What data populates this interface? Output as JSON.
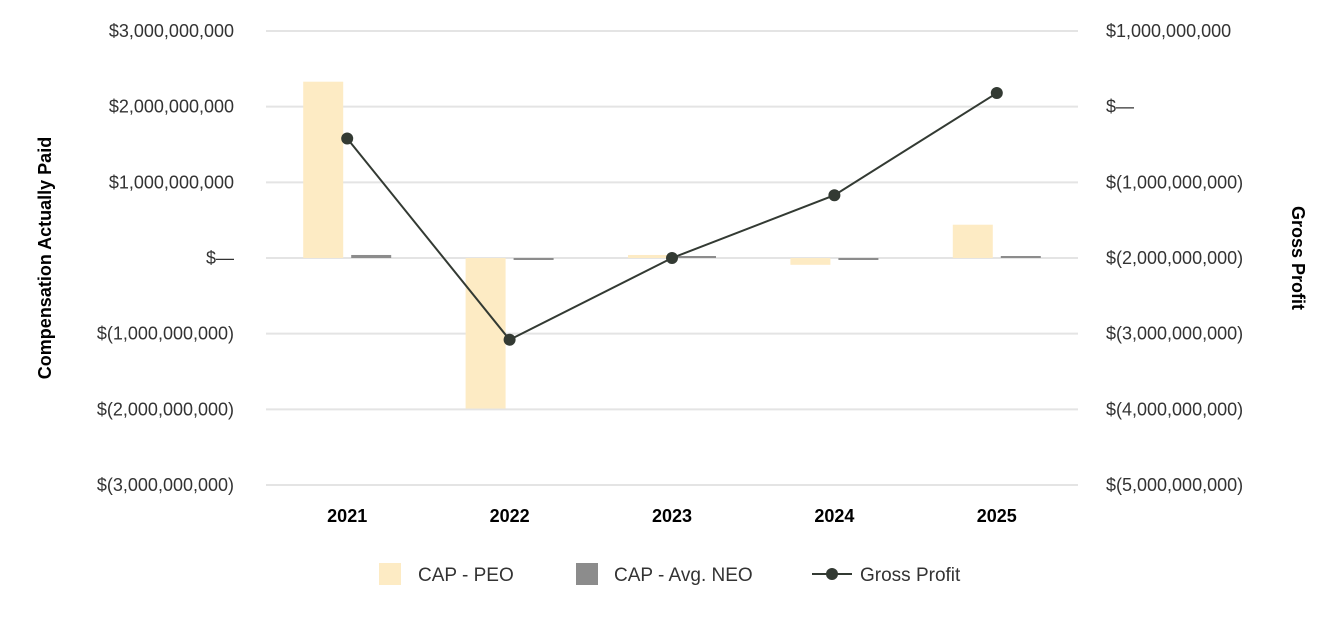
{
  "chart_data": {
    "type": "bar",
    "categories": [
      "2021",
      "2022",
      "2023",
      "2024",
      "2025"
    ],
    "series": [
      {
        "name": "CAP - PEO",
        "type": "bar",
        "axis": "left",
        "color": "#fdebc4",
        "values": [
          2330000000,
          -1990000000,
          40000000,
          -90000000,
          440000000
        ]
      },
      {
        "name": "CAP - Avg. NEO",
        "type": "bar",
        "axis": "left",
        "color": "#8c8c8c",
        "values": [
          40000000,
          -20000000,
          10000000,
          -10000000,
          10000000
        ]
      },
      {
        "name": "Gross Profit",
        "type": "line",
        "axis": "right",
        "color": "#333a33",
        "values": [
          -420000000,
          -3080000000,
          -2000000000,
          -1170000000,
          180000000
        ]
      }
    ],
    "ylabel": "Compensation Actually Paid",
    "y2label": "Gross Profit",
    "ylim": [
      -3000000000,
      3000000000
    ],
    "y2lim": [
      -5000000000,
      1000000000
    ],
    "yticks": [
      3000000000,
      2000000000,
      1000000000,
      0,
      -1000000000,
      -2000000000,
      -3000000000
    ],
    "yticklabels": [
      "$3,000,000,000",
      "$2,000,000,000",
      "$1,000,000,000",
      "$—",
      "$(1,000,000,000)",
      "$(2,000,000,000)",
      "$(3,000,000,000)"
    ],
    "y2ticks": [
      1000000000,
      0,
      -1000000000,
      -2000000000,
      -3000000000,
      -4000000000,
      -5000000000
    ],
    "y2ticklabels": [
      "$1,000,000,000",
      "$—",
      "$(1,000,000,000)",
      "$(2,000,000,000)",
      "$(3,000,000,000)",
      "$(4,000,000,000)",
      "$(5,000,000,000)"
    ],
    "grid": true,
    "legend_position": "bottom"
  }
}
